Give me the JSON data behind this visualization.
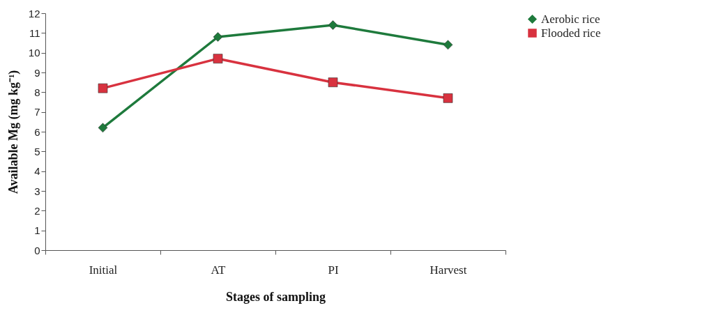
{
  "chart_data": {
    "type": "line",
    "xlabel": "Stages of sampling",
    "ylabel": "Available Mg (mg kg⁻¹)",
    "categories": [
      "Initial",
      "AT",
      "PI",
      "Harvest"
    ],
    "series": [
      {
        "name": "Aerobic rice",
        "color": "#1e7a3c",
        "marker": "diamond",
        "values": [
          6.2,
          10.8,
          11.4,
          10.4
        ]
      },
      {
        "name": "Flooded rice",
        "color": "#d8323f",
        "marker": "square",
        "values": [
          8.2,
          9.7,
          8.5,
          7.7
        ]
      }
    ],
    "ylim": [
      0,
      12
    ],
    "yticks": [
      0,
      1,
      2,
      3,
      4,
      5,
      6,
      7,
      8,
      9,
      10,
      11,
      12
    ],
    "grid": false,
    "legend": "right"
  }
}
